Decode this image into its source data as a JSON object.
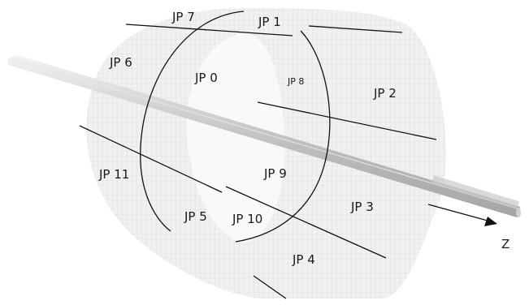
{
  "diagram": {
    "regions": [
      {
        "id": "jp7",
        "label": "JP 7"
      },
      {
        "id": "jp1",
        "label": "JP 1"
      },
      {
        "id": "jp6",
        "label": "JP 6"
      },
      {
        "id": "jp0",
        "label": "JP 0"
      },
      {
        "id": "jp8",
        "label": "JP 8"
      },
      {
        "id": "jp2",
        "label": "JP 2"
      },
      {
        "id": "jp11",
        "label": "JP 11"
      },
      {
        "id": "jp9",
        "label": "JP 9"
      },
      {
        "id": "jp3",
        "label": "JP 3"
      },
      {
        "id": "jp5",
        "label": "JP 5"
      },
      {
        "id": "jp10",
        "label": "JP 10"
      },
      {
        "id": "jp4",
        "label": "JP 4"
      }
    ],
    "axis_label": "Z",
    "colors": {
      "surface": "#ececec",
      "mesh": "#c9c9c9",
      "lines": "#111111",
      "beam": "#bdbdbd"
    }
  }
}
